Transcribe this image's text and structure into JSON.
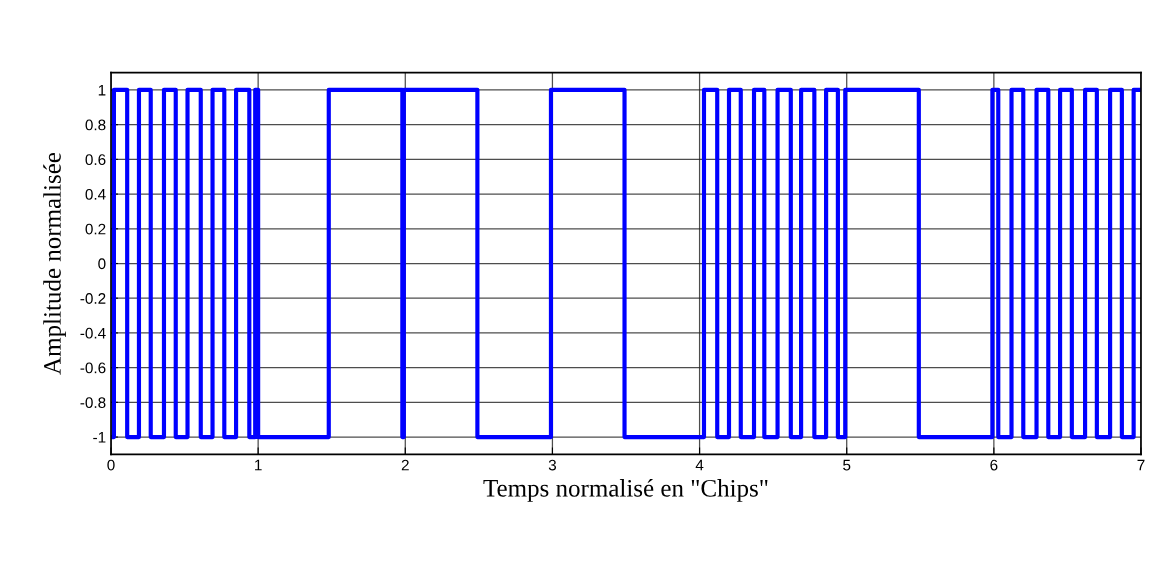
{
  "chart_data": {
    "type": "step",
    "xlabel": "Temps normalisé en \"Chips\"",
    "ylabel": "Amplitude normalisée",
    "series": [
      {
        "color": "#0000ff",
        "x": [
          0,
          0.02,
          0.11,
          0.19,
          0.27,
          0.36,
          0.44,
          0.52,
          0.61,
          0.69,
          0.77,
          0.85,
          0.94,
          0.98,
          1.0,
          1.48,
          1.98,
          1.99,
          2.49,
          2.99,
          3.49,
          4.03,
          4.12,
          4.2,
          4.28,
          4.37,
          4.44,
          4.53,
          4.62,
          4.69,
          4.78,
          4.86,
          4.94,
          4.99,
          5.49,
          5.99,
          6.03,
          6.12,
          6.2,
          6.29,
          6.37,
          6.45,
          6.53,
          6.62,
          6.7,
          6.79,
          6.87,
          6.95,
          7
        ],
        "values": [
          -1,
          1,
          -1,
          1,
          -1,
          1,
          -1,
          1,
          -1,
          1,
          -1,
          1,
          -1,
          1,
          -1,
          1,
          -1,
          1,
          -1,
          1,
          -1,
          1,
          -1,
          1,
          -1,
          1,
          -1,
          1,
          -1,
          1,
          -1,
          1,
          -1,
          1,
          -1,
          1,
          -1,
          1,
          -1,
          1,
          -1,
          1,
          -1,
          1,
          -1,
          1,
          -1,
          1,
          1
        ]
      }
    ],
    "xlim": [
      0,
      7
    ],
    "xticks": [
      0,
      1,
      2,
      3,
      4,
      5,
      6,
      7
    ],
    "ylim": [
      -1.1,
      1.1
    ],
    "yticks": [
      -1,
      -0.8,
      -0.6,
      -0.4,
      -0.2,
      0,
      0.2,
      0.4,
      0.6,
      0.8,
      1
    ],
    "grid": true,
    "line_style": "solid",
    "marker": "none"
  }
}
